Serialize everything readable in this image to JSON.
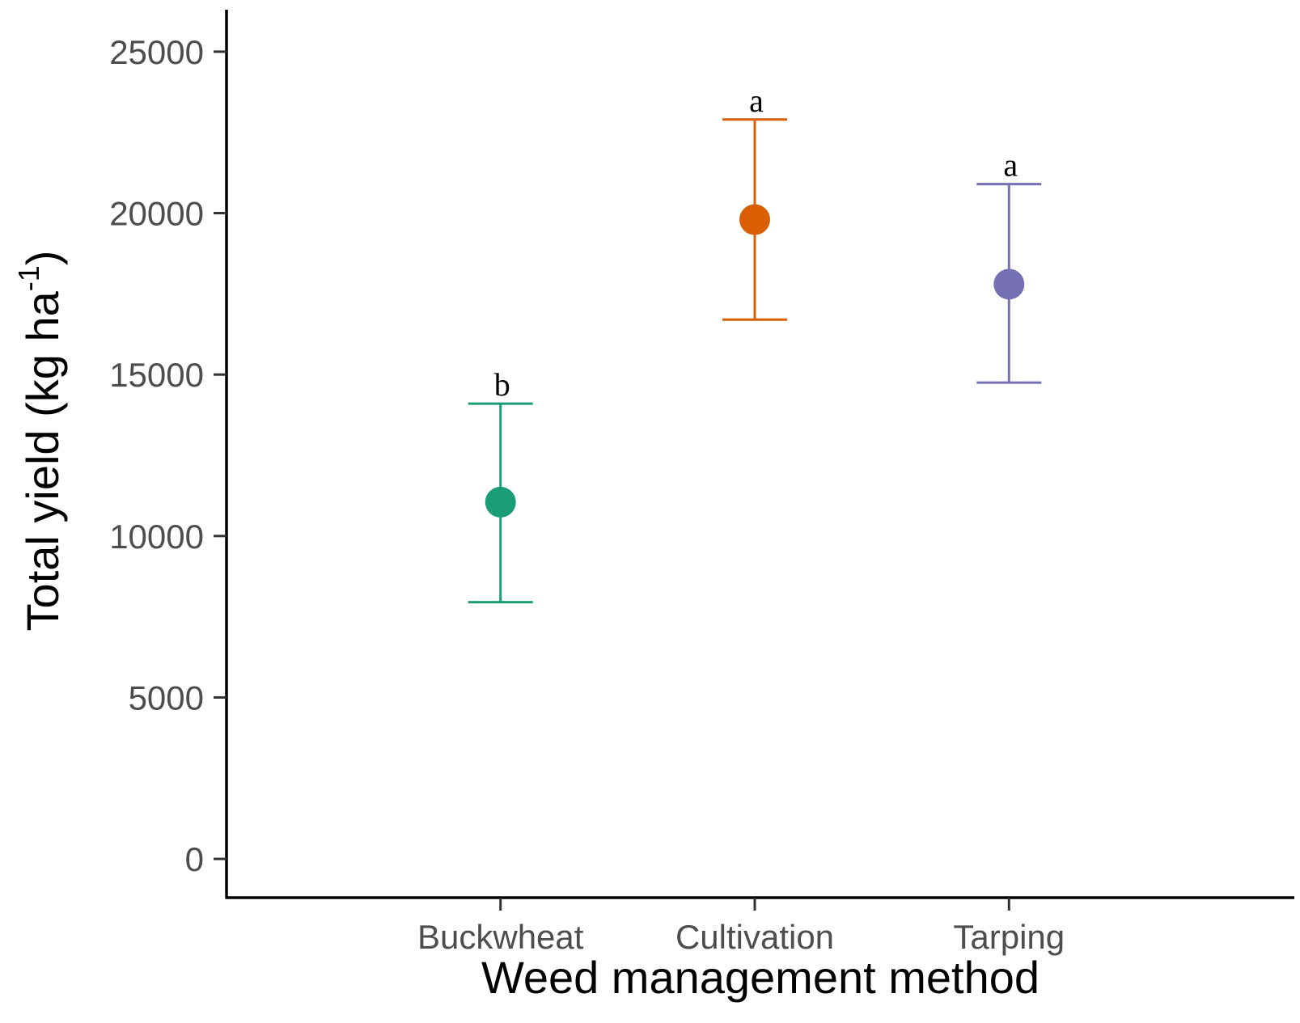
{
  "chart_data": {
    "type": "scatter",
    "title": "",
    "xlabel": "Weed management method",
    "ylabel": {
      "main": "Total yield (kg ha",
      "superscript": "-1",
      "close": ")"
    },
    "ylim": [
      -1200,
      26300
    ],
    "yticks": [
      0,
      5000,
      10000,
      15000,
      20000,
      25000
    ],
    "ytick_labels": [
      "0",
      "5000",
      "10000",
      "15000",
      "20000",
      "25000"
    ],
    "categories": [
      "Buckwheat",
      "Cultivation",
      "Tarping"
    ],
    "points": [
      {
        "category": "Buckwheat",
        "mean": 11050,
        "lower": 7950,
        "upper": 14100,
        "letter": "b",
        "color": "#1b9e77"
      },
      {
        "category": "Cultivation",
        "mean": 19800,
        "lower": 16700,
        "upper": 22900,
        "letter": "a",
        "color": "#d95f02"
      },
      {
        "category": "Tarping",
        "mean": 17800,
        "lower": 14750,
        "upper": 20900,
        "letter": "a",
        "color": "#7570b3"
      }
    ],
    "grid": false,
    "legend": "none"
  }
}
